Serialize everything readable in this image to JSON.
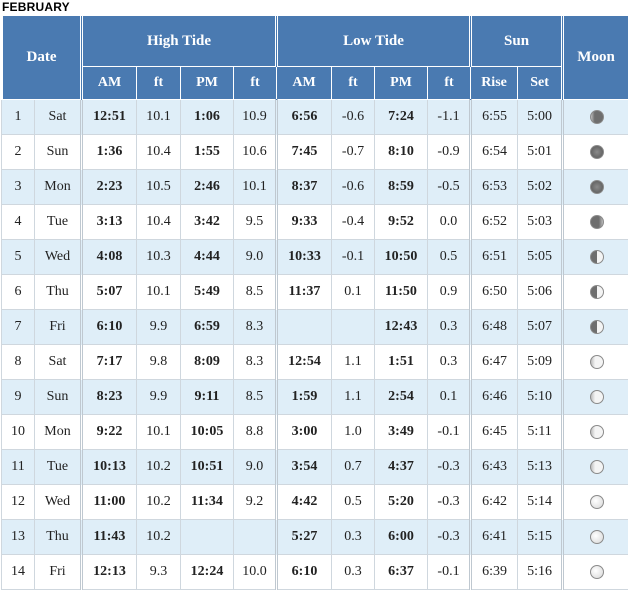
{
  "title": "FEBRUARY",
  "headers": {
    "date": "Date",
    "high_tide": "High Tide",
    "low_tide": "Low Tide",
    "sun": "Sun",
    "moon": "Moon",
    "sub": [
      "AM",
      "ft",
      "PM",
      "ft",
      "AM",
      "ft",
      "PM",
      "ft",
      "Rise",
      "Set"
    ]
  },
  "rows": [
    {
      "day": "1",
      "dow": "Sat",
      "h_am": "12:51",
      "h_am_ft": "10.1",
      "h_pm": "1:06",
      "h_pm_ft": "10.9",
      "l_am": "6:56",
      "l_am_ft": "-0.6",
      "l_pm": "7:24",
      "l_pm_ft": "-1.1",
      "rise": "6:55",
      "set": "5:00",
      "moon": "waning-crescent"
    },
    {
      "day": "2",
      "dow": "Sun",
      "h_am": "1:36",
      "h_am_ft": "10.4",
      "h_pm": "1:55",
      "h_pm_ft": "10.6",
      "l_am": "7:45",
      "l_am_ft": "-0.7",
      "l_pm": "8:10",
      "l_pm_ft": "-0.9",
      "rise": "6:54",
      "set": "5:01",
      "moon": "new"
    },
    {
      "day": "3",
      "dow": "Mon",
      "h_am": "2:23",
      "h_am_ft": "10.5",
      "h_pm": "2:46",
      "h_pm_ft": "10.1",
      "l_am": "8:37",
      "l_am_ft": "-0.6",
      "l_pm": "8:59",
      "l_pm_ft": "-0.5",
      "rise": "6:53",
      "set": "5:02",
      "moon": "new"
    },
    {
      "day": "4",
      "dow": "Tue",
      "h_am": "3:13",
      "h_am_ft": "10.4",
      "h_pm": "3:42",
      "h_pm_ft": "9.5",
      "l_am": "9:33",
      "l_am_ft": "-0.4",
      "l_pm": "9:52",
      "l_pm_ft": "0.0",
      "rise": "6:52",
      "set": "5:03",
      "moon": "waxing-crescent"
    },
    {
      "day": "5",
      "dow": "Wed",
      "h_am": "4:08",
      "h_am_ft": "10.3",
      "h_pm": "4:44",
      "h_pm_ft": "9.0",
      "l_am": "10:33",
      "l_am_ft": "-0.1",
      "l_pm": "10:50",
      "l_pm_ft": "0.5",
      "rise": "6:51",
      "set": "5:05",
      "moon": "first-quarter"
    },
    {
      "day": "6",
      "dow": "Thu",
      "h_am": "5:07",
      "h_am_ft": "10.1",
      "h_pm": "5:49",
      "h_pm_ft": "8.5",
      "l_am": "11:37",
      "l_am_ft": "0.1",
      "l_pm": "11:50",
      "l_pm_ft": "0.9",
      "rise": "6:50",
      "set": "5:06",
      "moon": "first-quarter"
    },
    {
      "day": "7",
      "dow": "Fri",
      "h_am": "6:10",
      "h_am_ft": "9.9",
      "h_pm": "6:59",
      "h_pm_ft": "8.3",
      "l_am": "",
      "l_am_ft": "",
      "l_pm": "12:43",
      "l_pm_ft": "0.3",
      "rise": "6:48",
      "set": "5:07",
      "moon": "first-quarter"
    },
    {
      "day": "8",
      "dow": "Sat",
      "h_am": "7:17",
      "h_am_ft": "9.8",
      "h_pm": "8:09",
      "h_pm_ft": "8.3",
      "l_am": "12:54",
      "l_am_ft": "1.1",
      "l_pm": "1:51",
      "l_pm_ft": "0.3",
      "rise": "6:47",
      "set": "5:09",
      "moon": "waxing-gibbous"
    },
    {
      "day": "9",
      "dow": "Sun",
      "h_am": "8:23",
      "h_am_ft": "9.9",
      "h_pm": "9:11",
      "h_pm_ft": "8.5",
      "l_am": "1:59",
      "l_am_ft": "1.1",
      "l_pm": "2:54",
      "l_pm_ft": "0.1",
      "rise": "6:46",
      "set": "5:10",
      "moon": "waxing-gibbous"
    },
    {
      "day": "10",
      "dow": "Mon",
      "h_am": "9:22",
      "h_am_ft": "10.1",
      "h_pm": "10:05",
      "h_pm_ft": "8.8",
      "l_am": "3:00",
      "l_am_ft": "1.0",
      "l_pm": "3:49",
      "l_pm_ft": "-0.1",
      "rise": "6:45",
      "set": "5:11",
      "moon": "waxing-gibbous"
    },
    {
      "day": "11",
      "dow": "Tue",
      "h_am": "10:13",
      "h_am_ft": "10.2",
      "h_pm": "10:51",
      "h_pm_ft": "9.0",
      "l_am": "3:54",
      "l_am_ft": "0.7",
      "l_pm": "4:37",
      "l_pm_ft": "-0.3",
      "rise": "6:43",
      "set": "5:13",
      "moon": "waxing-gibbous"
    },
    {
      "day": "12",
      "dow": "Wed",
      "h_am": "11:00",
      "h_am_ft": "10.2",
      "h_pm": "11:34",
      "h_pm_ft": "9.2",
      "l_am": "4:42",
      "l_am_ft": "0.5",
      "l_pm": "5:20",
      "l_pm_ft": "-0.3",
      "rise": "6:42",
      "set": "5:14",
      "moon": "full"
    },
    {
      "day": "13",
      "dow": "Thu",
      "h_am": "11:43",
      "h_am_ft": "10.2",
      "h_pm": "",
      "h_pm_ft": "",
      "l_am": "5:27",
      "l_am_ft": "0.3",
      "l_pm": "6:00",
      "l_pm_ft": "-0.3",
      "rise": "6:41",
      "set": "5:15",
      "moon": "full"
    },
    {
      "day": "14",
      "dow": "Fri",
      "h_am": "12:13",
      "h_am_ft": "9.3",
      "h_pm": "12:24",
      "h_pm_ft": "10.0",
      "l_am": "6:10",
      "l_am_ft": "0.3",
      "l_pm": "6:37",
      "l_pm_ft": "-0.1",
      "rise": "6:39",
      "set": "5:16",
      "moon": "full"
    }
  ],
  "colors": {
    "header_bg": "#4a7ab1",
    "row_alt_bg": "#dfeef8",
    "row_plain_bg": "#ffffff"
  }
}
